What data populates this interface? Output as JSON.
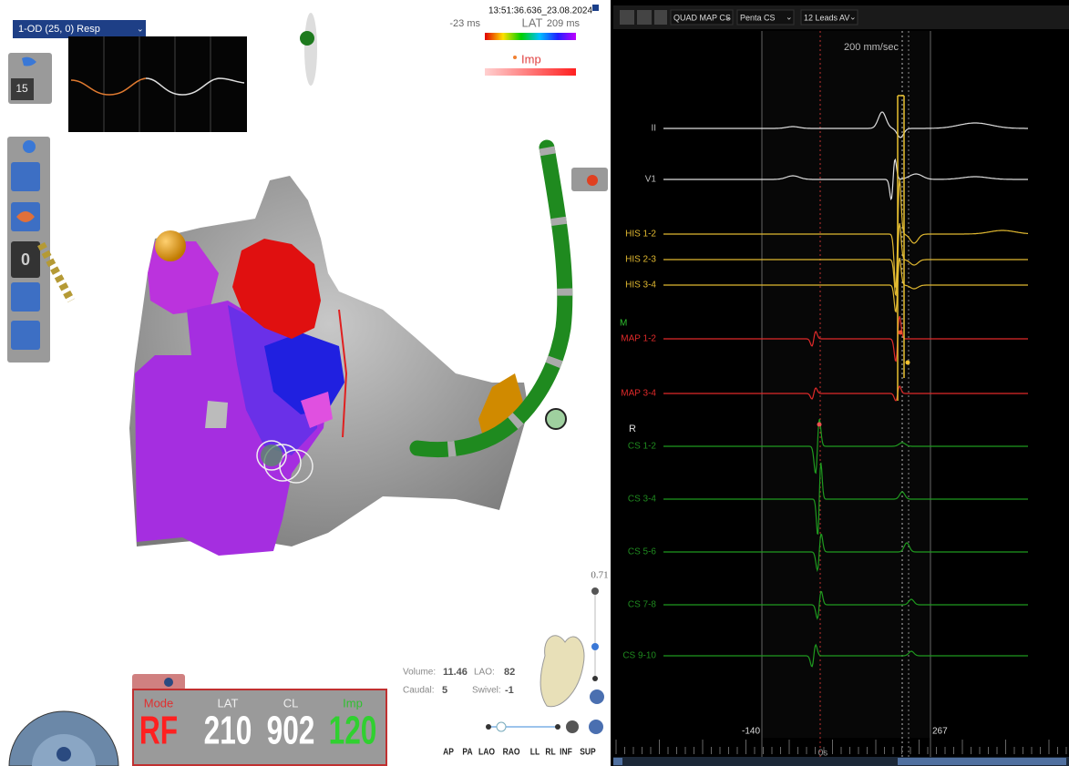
{
  "map_view": {
    "dropdown": "1-OD (25, 0) Resp",
    "timestamp": "13:51:36.636_23.08.2024",
    "lat_scale": {
      "min": "-23 ms",
      "label": "LAT",
      "max": "209 ms"
    },
    "imp_label": "Imp",
    "resp_gain": "15",
    "tag_count": "0",
    "zoom": "0.71",
    "orientation": {
      "volume_label": "Volume:",
      "volume": "11.46",
      "lao_label": "LAO:",
      "lao": "82",
      "caudal_label": "Caudal:",
      "caudal": "5",
      "swivel_label": "Swivel:",
      "swivel": "-1"
    },
    "view_buttons": [
      "AP",
      "PA",
      "LAO",
      "RAO",
      "LL",
      "RL",
      "INF",
      "SUP"
    ]
  },
  "status_panel": {
    "labels": [
      "Mode",
      "LAT",
      "CL",
      "Imp"
    ],
    "values": [
      "RF",
      "210",
      "902",
      "120"
    ]
  },
  "egm_panel": {
    "toolbar": [
      "QUAD MAP CS",
      "Penta CS",
      "12 Leads AV"
    ],
    "sweep": "200 mm/sec",
    "channels": [
      "II",
      "V1",
      "HIS 1-2",
      "HIS 2-3",
      "HIS 3-4",
      "MAP 1-2",
      "MAP 3-4",
      "CS 1-2",
      "CS 3-4",
      "CS 5-6",
      "CS 7-8",
      "CS 9-10"
    ],
    "group_labels": [
      "M",
      "R"
    ],
    "cursor_left": "-140",
    "cursor_right": "267",
    "time_zero": "0s"
  }
}
